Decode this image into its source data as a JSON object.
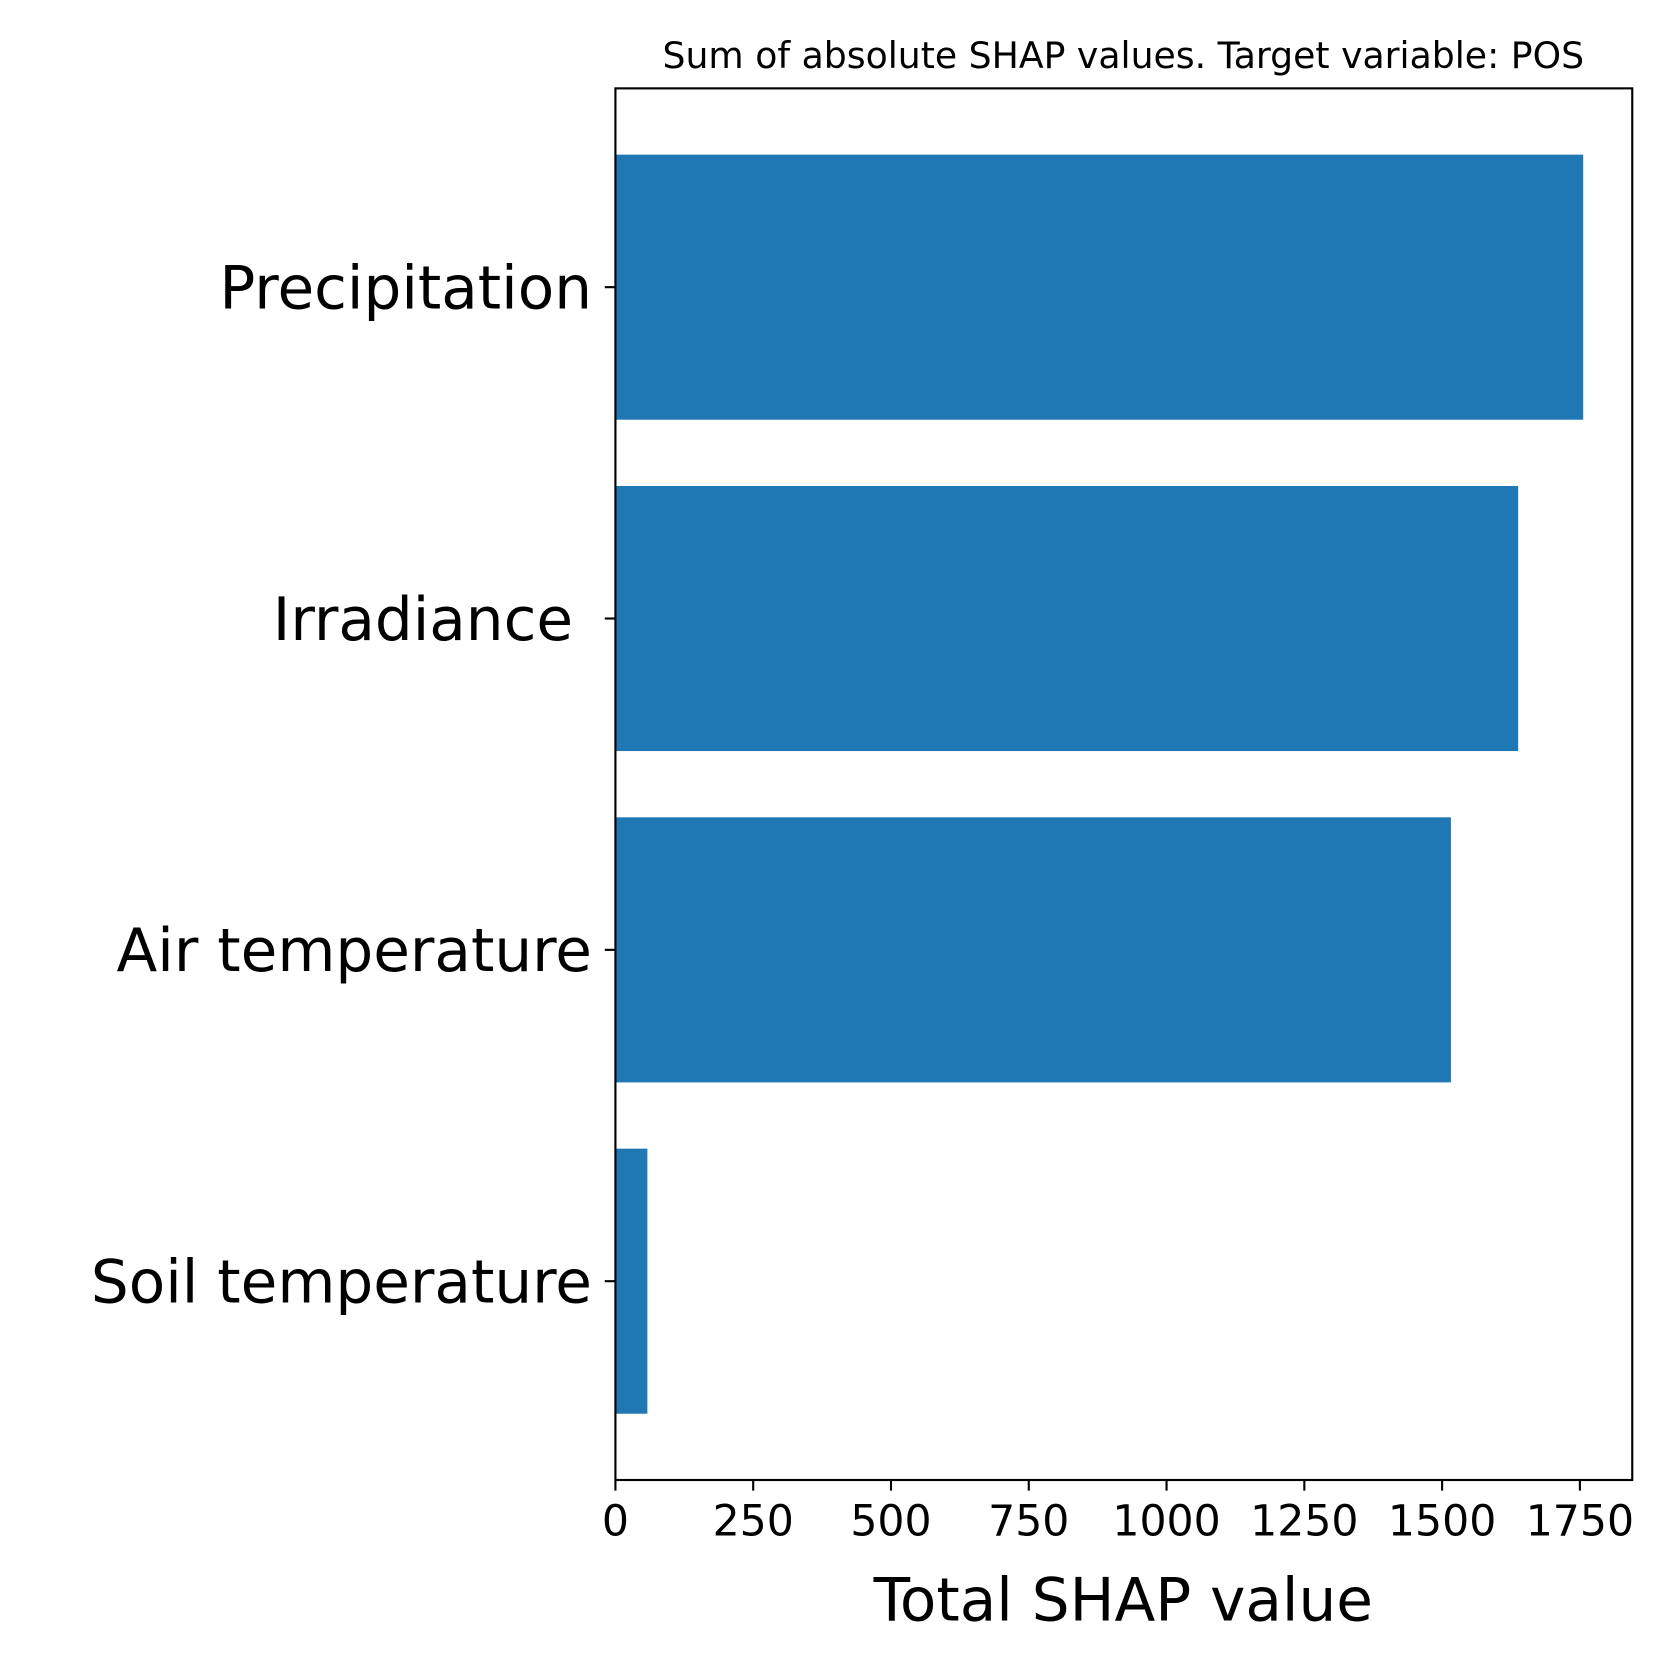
{
  "chart_data": {
    "type": "barh",
    "title": "Sum of absolute SHAP values. Target variable: POS",
    "x_label": "Total SHAP value",
    "categories": [
      "Precipitation",
      "Irradiance ",
      "Air temperature",
      "Soil temperature"
    ],
    "values": [
      1756,
      1638,
      1516,
      58
    ],
    "color": "#1f77b4",
    "xlim": [
      0,
      1845
    ],
    "xticks": [
      0,
      250,
      500,
      750,
      1000,
      1250,
      1500,
      1750
    ]
  }
}
